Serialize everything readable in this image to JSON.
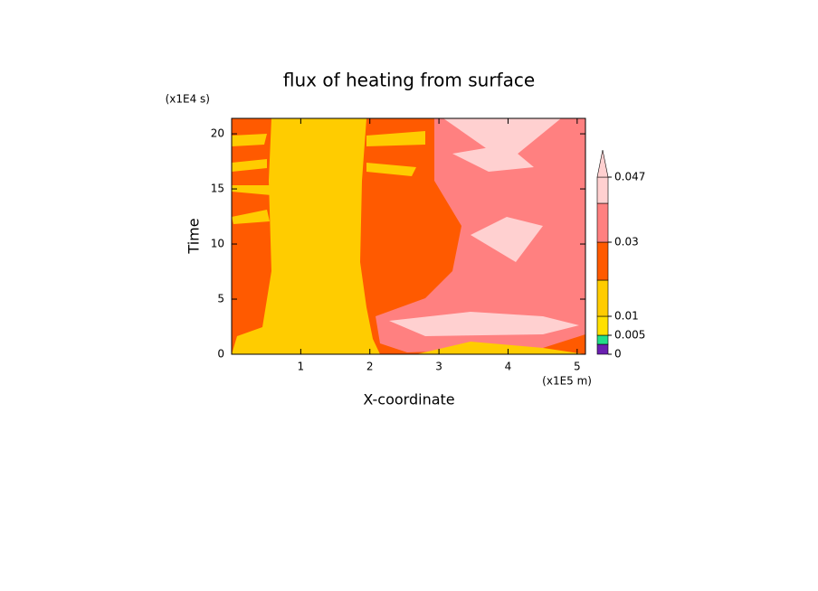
{
  "chart_data": {
    "type": "contour",
    "title": "flux of heating from surface",
    "x_label": "X-coordinate",
    "y_label": "Time",
    "x_unit": "(x1E5 m)",
    "y_unit": "(x1E4 s)",
    "xlim": [
      0,
      5.12
    ],
    "xticks": [
      1,
      2,
      3,
      4,
      5
    ],
    "ylim": [
      0,
      21.4
    ],
    "yticks": [
      0,
      5,
      10,
      15,
      20
    ],
    "levels": [
      0,
      0.005,
      0.01,
      0.03,
      0.047
    ],
    "colors": [
      "#6a1fb0",
      "#22dd88",
      "#ffe000",
      "#ffcc00",
      "#ff5a00",
      "#ff8080",
      "#ffd0d0"
    ]
  }
}
